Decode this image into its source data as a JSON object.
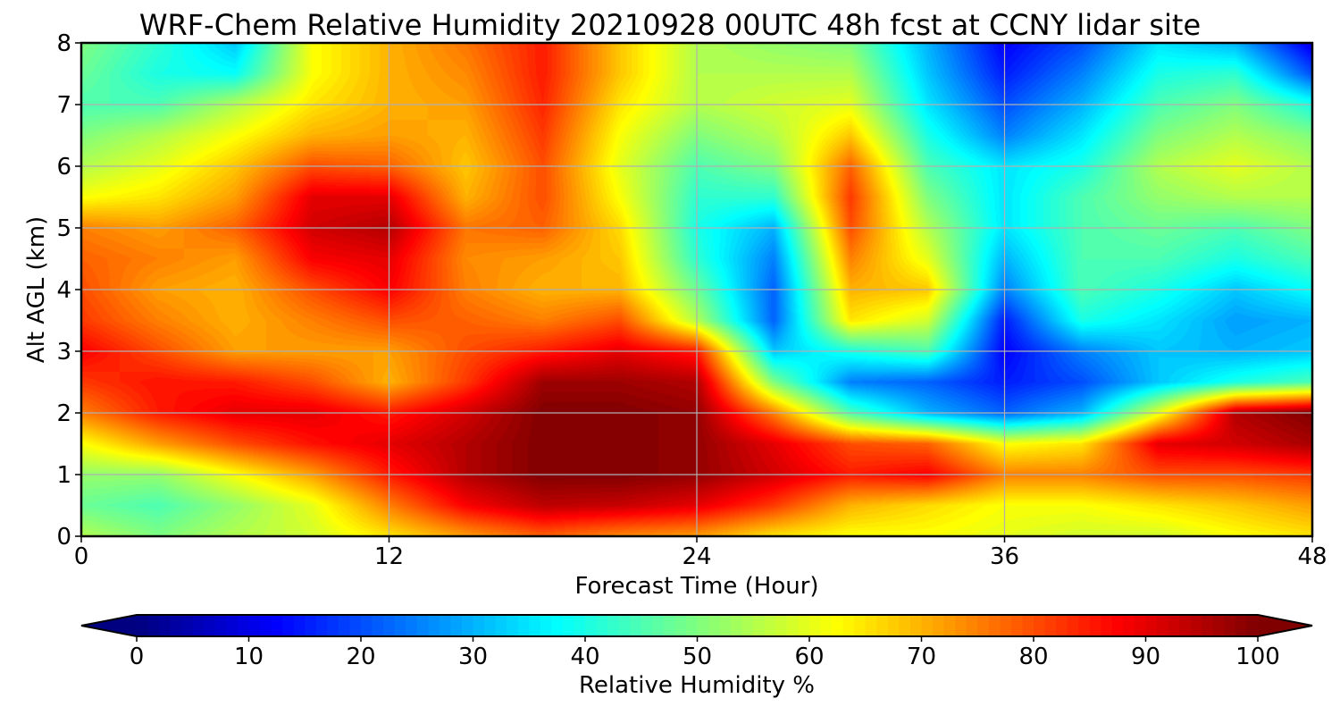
{
  "chart_data": {
    "type": "heatmap",
    "title": "WRF-Chem Relative Humidity 20210928 00UTC 48h fcst at CCNY lidar site",
    "xlabel": "Forecast Time (Hour)",
    "ylabel": "Alt AGL (km)",
    "xlim": [
      0,
      48
    ],
    "ylim": [
      0,
      8
    ],
    "xticks": [
      "0",
      "12",
      "24",
      "36",
      "48"
    ],
    "yticks": [
      "0",
      "1",
      "2",
      "3",
      "4",
      "5",
      "6",
      "7",
      "8"
    ],
    "grid": true,
    "x": [
      0,
      3,
      6,
      9,
      12,
      15,
      18,
      21,
      24,
      27,
      30,
      33,
      36,
      39,
      42,
      45,
      48
    ],
    "y": [
      0,
      0.5,
      1,
      1.5,
      2,
      2.5,
      3,
      3.5,
      4,
      4.5,
      5,
      5.5,
      6,
      6.5,
      7,
      7.5,
      8
    ],
    "z": [
      [
        55,
        50,
        55,
        58,
        65,
        72,
        78,
        74,
        72,
        65,
        62,
        62,
        60,
        58,
        58,
        62,
        65
      ],
      [
        48,
        45,
        52,
        60,
        75,
        88,
        94,
        93,
        90,
        82,
        70,
        66,
        62,
        62,
        65,
        68,
        72
      ],
      [
        52,
        52,
        62,
        72,
        85,
        95,
        100,
        100,
        98,
        92,
        85,
        88,
        75,
        75,
        80,
        80,
        82
      ],
      [
        62,
        72,
        80,
        86,
        90,
        95,
        100,
        100,
        98,
        90,
        80,
        78,
        62,
        65,
        90,
        92,
        96
      ],
      [
        75,
        85,
        90,
        90,
        85,
        92,
        100,
        100,
        98,
        75,
        45,
        30,
        22,
        30,
        60,
        95,
        100
      ],
      [
        82,
        86,
        85,
        80,
        70,
        82,
        97,
        97,
        95,
        50,
        25,
        22,
        15,
        20,
        32,
        40,
        45
      ],
      [
        88,
        80,
        72,
        72,
        72,
        80,
        85,
        90,
        85,
        32,
        40,
        45,
        12,
        25,
        32,
        30,
        32
      ],
      [
        82,
        75,
        70,
        75,
        80,
        78,
        75,
        80,
        55,
        22,
        65,
        58,
        15,
        40,
        35,
        28,
        30
      ],
      [
        80,
        72,
        70,
        80,
        88,
        75,
        70,
        70,
        48,
        22,
        70,
        68,
        25,
        45,
        40,
        32,
        38
      ],
      [
        78,
        75,
        72,
        88,
        90,
        74,
        72,
        68,
        42,
        25,
        75,
        60,
        30,
        45,
        45,
        40,
        45
      ],
      [
        75,
        72,
        78,
        92,
        95,
        76,
        78,
        66,
        40,
        30,
        80,
        55,
        35,
        45,
        48,
        45,
        50
      ],
      [
        62,
        65,
        72,
        90,
        90,
        70,
        80,
        62,
        42,
        42,
        82,
        50,
        35,
        45,
        52,
        55,
        55
      ],
      [
        55,
        60,
        68,
        80,
        78,
        68,
        80,
        60,
        45,
        50,
        78,
        45,
        35,
        40,
        55,
        60,
        55
      ],
      [
        50,
        55,
        62,
        70,
        72,
        70,
        82,
        62,
        50,
        55,
        68,
        40,
        25,
        35,
        50,
        55,
        50
      ],
      [
        45,
        45,
        55,
        65,
        70,
        72,
        84,
        65,
        55,
        58,
        60,
        35,
        20,
        30,
        45,
        50,
        40
      ],
      [
        48,
        40,
        38,
        62,
        70,
        74,
        85,
        68,
        55,
        55,
        55,
        32,
        15,
        25,
        40,
        42,
        20
      ],
      [
        50,
        42,
        32,
        62,
        70,
        76,
        85,
        68,
        55,
        52,
        50,
        30,
        12,
        20,
        35,
        30,
        10
      ]
    ],
    "colorbar": {
      "label": "Relative Humidity %",
      "ticks": [
        "0",
        "10",
        "20",
        "30",
        "40",
        "50",
        "60",
        "70",
        "80",
        "90",
        "100"
      ],
      "range": [
        0,
        100
      ],
      "colormap": "jet",
      "extend": "both"
    }
  }
}
